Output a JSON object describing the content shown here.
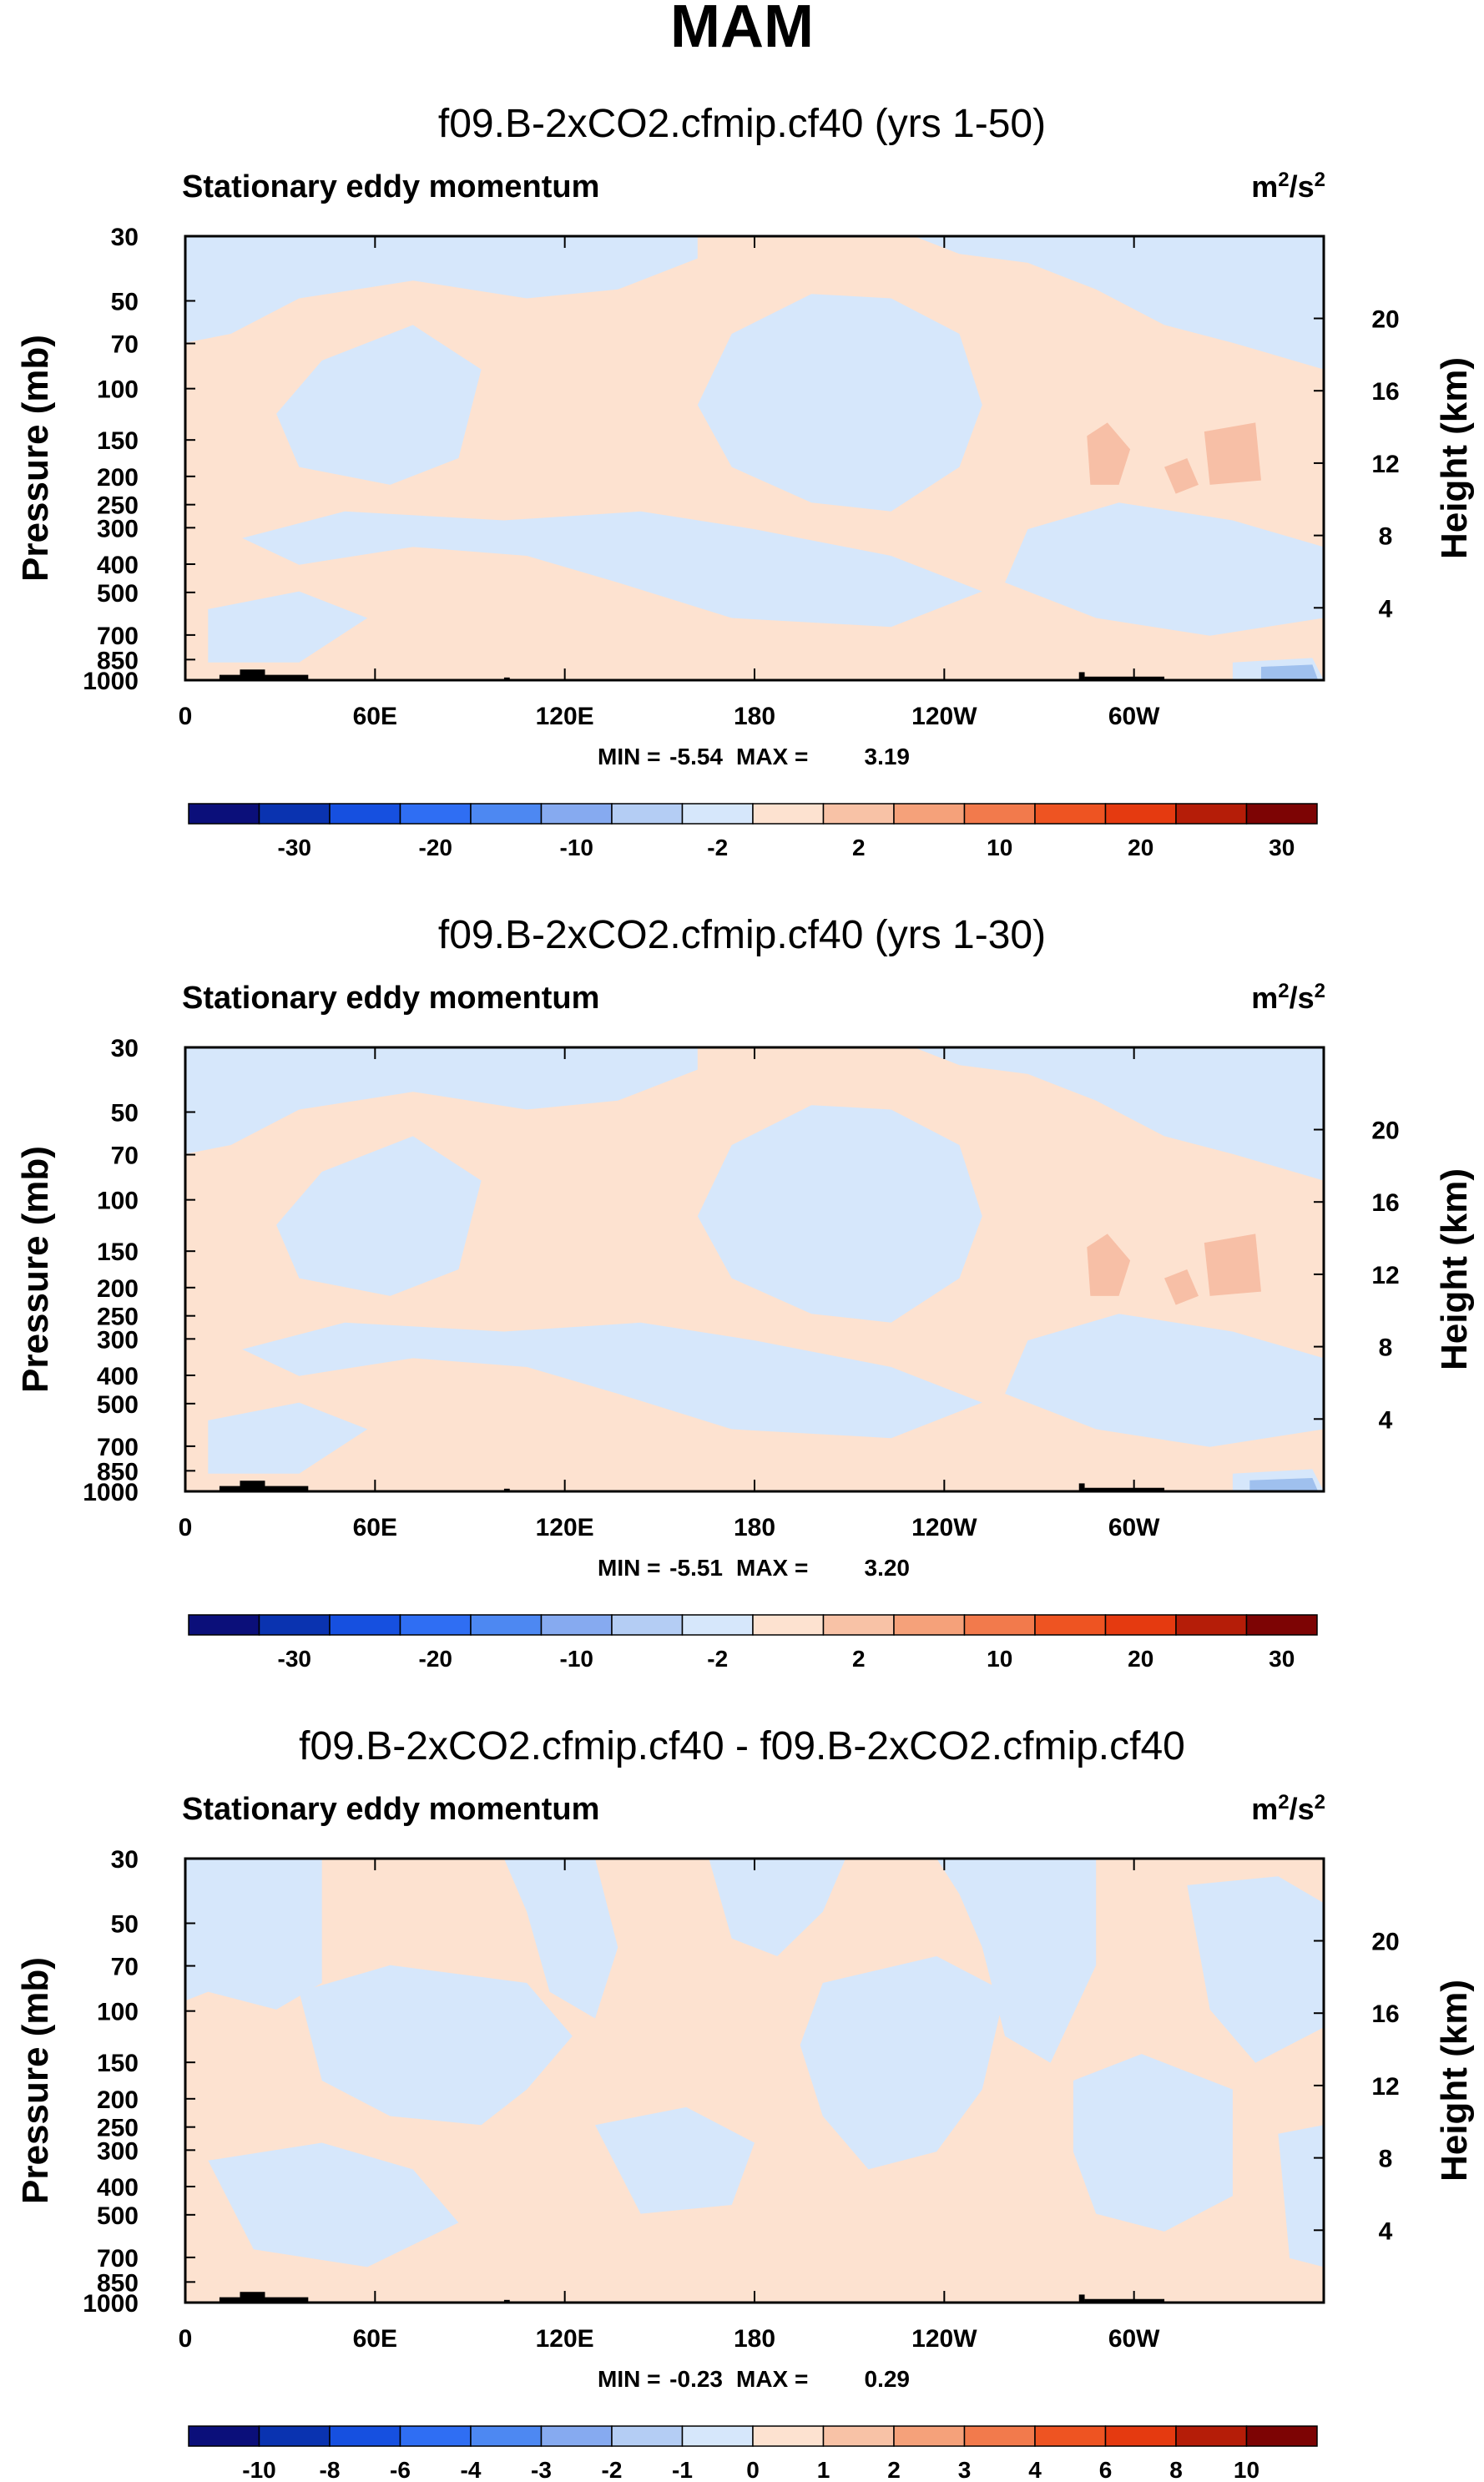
{
  "figure": {
    "title": "MAM",
    "colors": {
      "positive_fill": "#fde2d0",
      "negative_fill": "#d6e7fb",
      "moderate_positive": "#f7bfa6",
      "moderate_negative": "#9fc0ee",
      "terrain": "#000000"
    }
  },
  "chart_data": [
    {
      "type": "contour",
      "title": "f09.B-2xCO2.cfmip.cf40 (yrs 1-50)",
      "left_label": "Stationary eddy momentum",
      "units_base": "m",
      "units_sup1": "2",
      "units_mid": "/s",
      "units_sup2": "2",
      "ylabel": "Pressure (mb)",
      "y2label": "Height (km)",
      "pressure_ticks": [
        30,
        50,
        70,
        100,
        150,
        200,
        250,
        300,
        400,
        500,
        700,
        850,
        1000
      ],
      "height_ticks": [
        20,
        16,
        12,
        8,
        4
      ],
      "x_ticks": [
        {
          "lon": 0,
          "label": "0"
        },
        {
          "lon": 60,
          "label": "60E"
        },
        {
          "lon": 120,
          "label": "120E"
        },
        {
          "lon": 180,
          "label": "180"
        },
        {
          "lon": 240,
          "label": "120W"
        },
        {
          "lon": 300,
          "label": "60W"
        }
      ],
      "xlim": [
        0,
        360
      ],
      "ylim": [
        1000,
        30
      ],
      "min_label": "MIN =",
      "min_value": "-5.54",
      "max_label": "MAX =",
      "max_value": "3.19",
      "colorbar": {
        "labels": [
          "-30",
          "-20",
          "-10",
          "-2",
          "2",
          "10",
          "20",
          "30"
        ],
        "colors": [
          "#0b0f7a",
          "#0a33b0",
          "#1650e0",
          "#2f6ef3",
          "#4d88f2",
          "#86aaf0",
          "#b4cdf4",
          "#d6e7fb",
          "#fde2d0",
          "#f8c2a6",
          "#f5a17a",
          "#f27a4c",
          "#ee5422",
          "#e53a10",
          "#b51d08",
          "#7d0404"
        ]
      }
    },
    {
      "type": "contour",
      "title": "f09.B-2xCO2.cfmip.cf40 (yrs 1-30)",
      "left_label": "Stationary eddy momentum",
      "units_base": "m",
      "units_sup1": "2",
      "units_mid": "/s",
      "units_sup2": "2",
      "ylabel": "Pressure (mb)",
      "y2label": "Height (km)",
      "pressure_ticks": [
        30,
        50,
        70,
        100,
        150,
        200,
        250,
        300,
        400,
        500,
        700,
        850,
        1000
      ],
      "height_ticks": [
        20,
        16,
        12,
        8,
        4
      ],
      "x_ticks": [
        {
          "lon": 0,
          "label": "0"
        },
        {
          "lon": 60,
          "label": "60E"
        },
        {
          "lon": 120,
          "label": "120E"
        },
        {
          "lon": 180,
          "label": "180"
        },
        {
          "lon": 240,
          "label": "120W"
        },
        {
          "lon": 300,
          "label": "60W"
        }
      ],
      "xlim": [
        0,
        360
      ],
      "ylim": [
        1000,
        30
      ],
      "min_label": "MIN =",
      "min_value": "-5.51",
      "max_label": "MAX =",
      "max_value": "3.20",
      "colorbar": {
        "labels": [
          "-30",
          "-20",
          "-10",
          "-2",
          "2",
          "10",
          "20",
          "30"
        ],
        "colors": [
          "#0b0f7a",
          "#0a33b0",
          "#1650e0",
          "#2f6ef3",
          "#4d88f2",
          "#86aaf0",
          "#b4cdf4",
          "#d6e7fb",
          "#fde2d0",
          "#f8c2a6",
          "#f5a17a",
          "#f27a4c",
          "#ee5422",
          "#e53a10",
          "#b51d08",
          "#7d0404"
        ]
      }
    },
    {
      "type": "contour",
      "title": "f09.B-2xCO2.cfmip.cf40 - f09.B-2xCO2.cfmip.cf40",
      "left_label": "Stationary eddy momentum",
      "units_base": "m",
      "units_sup1": "2",
      "units_mid": "/s",
      "units_sup2": "2",
      "ylabel": "Pressure (mb)",
      "y2label": "Height (km)",
      "pressure_ticks": [
        30,
        50,
        70,
        100,
        150,
        200,
        250,
        300,
        400,
        500,
        700,
        850,
        1000
      ],
      "height_ticks": [
        20,
        16,
        12,
        8,
        4
      ],
      "x_ticks": [
        {
          "lon": 0,
          "label": "0"
        },
        {
          "lon": 60,
          "label": "60E"
        },
        {
          "lon": 120,
          "label": "120E"
        },
        {
          "lon": 180,
          "label": "180"
        },
        {
          "lon": 240,
          "label": "120W"
        },
        {
          "lon": 300,
          "label": "60W"
        }
      ],
      "xlim": [
        0,
        360
      ],
      "ylim": [
        1000,
        30
      ],
      "min_label": "MIN =",
      "min_value": "-0.23",
      "max_label": "MAX =",
      "max_value": "0.29",
      "colorbar": {
        "labels": [
          "-10",
          "-8",
          "-6",
          "-4",
          "-3",
          "-2",
          "-1",
          "0",
          "1",
          "2",
          "3",
          "4",
          "6",
          "8",
          "10"
        ],
        "colors": [
          "#0b0f7a",
          "#0a33b0",
          "#1650e0",
          "#2f6ef3",
          "#4d88f2",
          "#86aaf0",
          "#b4cdf4",
          "#d6e7fb",
          "#fde2d0",
          "#f8c2a6",
          "#f5a17a",
          "#f27a4c",
          "#ee5422",
          "#e53a10",
          "#b51d08",
          "#7d0404"
        ]
      }
    }
  ]
}
